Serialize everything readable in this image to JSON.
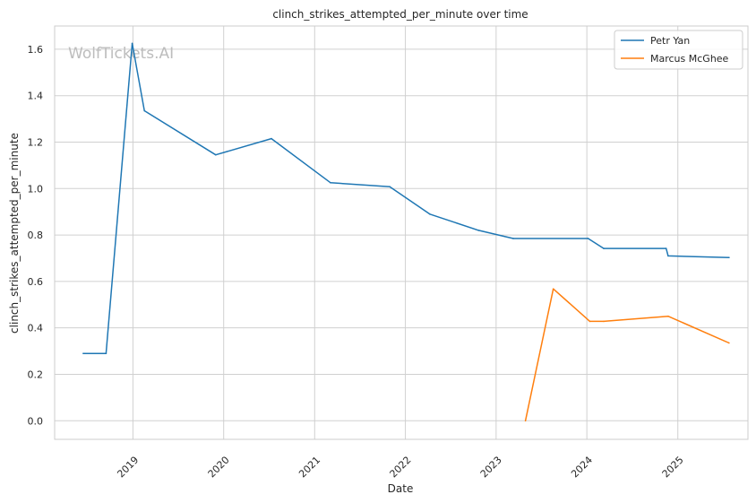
{
  "watermark": "WolfTickets.AI",
  "chart_data": {
    "type": "line",
    "title": "clinch_strikes_attempted_per_minute over time",
    "xlabel": "Date",
    "ylabel": "clinch_strikes_attempted_per_minute",
    "xlim": [
      "2018-02-20",
      "2025-10-10"
    ],
    "ylim": [
      -0.08,
      1.7
    ],
    "yticks": [
      "0.0",
      "0.2",
      "0.4",
      "0.6",
      "0.8",
      "1.0",
      "1.2",
      "1.4",
      "1.6"
    ],
    "xticks": [
      "2019",
      "2020",
      "2021",
      "2022",
      "2023",
      "2024",
      "2025"
    ],
    "grid": true,
    "legend_position": "top-right",
    "series": [
      {
        "name": "Petr Yan",
        "color": "#1f77b4",
        "points": [
          {
            "x": "2018-06-15",
            "y": 0.29
          },
          {
            "x": "2018-09-15",
            "y": 0.29
          },
          {
            "x": "2018-12-29",
            "y": 1.625
          },
          {
            "x": "2019-02-16",
            "y": 1.335
          },
          {
            "x": "2019-11-30",
            "y": 1.145
          },
          {
            "x": "2020-07-11",
            "y": 1.215
          },
          {
            "x": "2021-03-06",
            "y": 1.025
          },
          {
            "x": "2021-10-30",
            "y": 1.008
          },
          {
            "x": "2022-04-09",
            "y": 0.89
          },
          {
            "x": "2022-10-22",
            "y": 0.82
          },
          {
            "x": "2023-03-11",
            "y": 0.785
          },
          {
            "x": "2024-01-06",
            "y": 0.785
          },
          {
            "x": "2024-03-09",
            "y": 0.742
          },
          {
            "x": "2024-11-15",
            "y": 0.742
          },
          {
            "x": "2024-11-23",
            "y": 0.71
          },
          {
            "x": "2025-07-26",
            "y": 0.703
          }
        ]
      },
      {
        "name": "Marcus McGhee",
        "color": "#ff7f0e",
        "points": [
          {
            "x": "2023-04-29",
            "y": 0.0
          },
          {
            "x": "2023-08-19",
            "y": 0.568
          },
          {
            "x": "2024-01-13",
            "y": 0.428
          },
          {
            "x": "2024-03-09",
            "y": 0.428
          },
          {
            "x": "2024-11-23",
            "y": 0.45
          },
          {
            "x": "2025-07-26",
            "y": 0.335
          }
        ]
      }
    ]
  }
}
